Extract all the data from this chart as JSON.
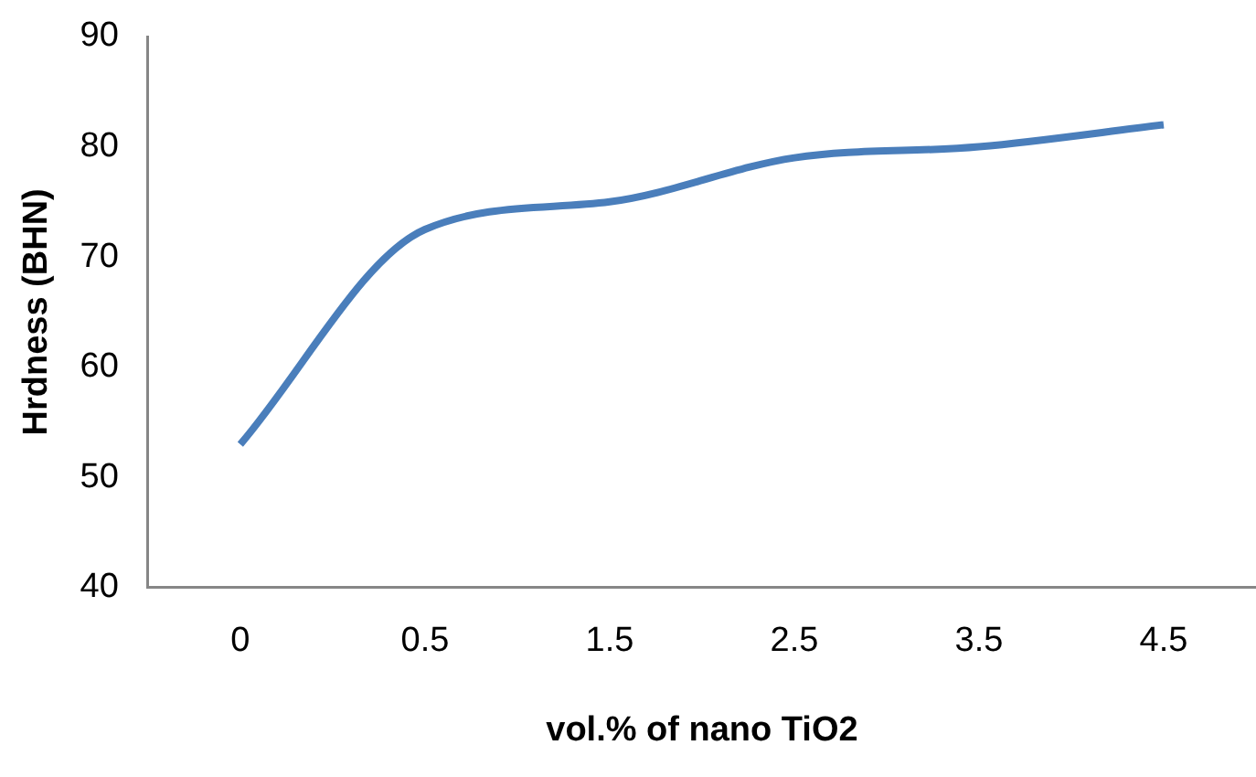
{
  "chart_data": {
    "type": "line",
    "xlabel": "vol.% of nano TiO2",
    "ylabel": "Hrdness (BHN)",
    "categories": [
      "0",
      "0.5",
      "1.5",
      "2.5",
      "3.5",
      "4.5"
    ],
    "series": [
      {
        "color": "#4a7ebb",
        "values": [
          53,
          72.5,
          75,
          79,
          80,
          82
        ]
      }
    ],
    "ylim": [
      40,
      90
    ],
    "yticks": [
      40,
      50,
      60,
      70,
      80,
      90
    ],
    "grid": false,
    "legend": false,
    "marker": "none",
    "line_style": "solid"
  }
}
